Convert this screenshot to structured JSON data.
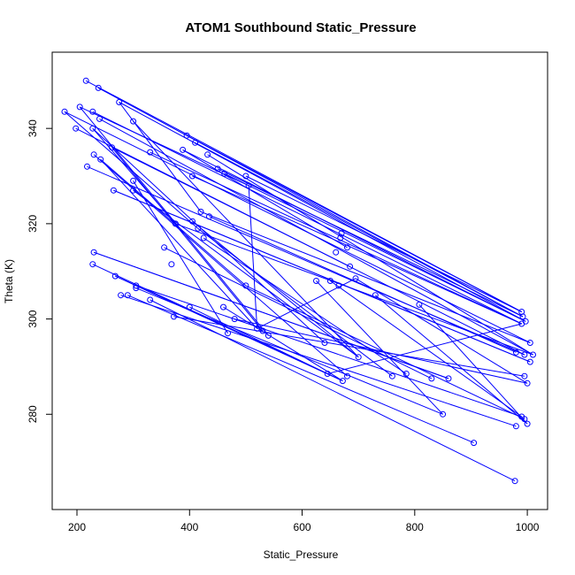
{
  "chart_data": {
    "type": "line",
    "title": "ATOM1 Southbound Static_Pressure",
    "xlabel": "Static_Pressure",
    "ylabel": "Theta (K)",
    "xlim": [
      156,
      1036
    ],
    "ylim": [
      260,
      356
    ],
    "x_ticks": [
      200,
      400,
      600,
      800,
      1000
    ],
    "y_ticks": [
      280,
      300,
      320,
      340
    ],
    "grid": false,
    "series_color": "#0000ff",
    "marker": "open-circle",
    "points": [
      [
        216,
        350
      ],
      [
        238,
        348.5
      ],
      [
        275,
        345.5
      ],
      [
        205,
        344.5
      ],
      [
        228,
        343.5
      ],
      [
        178,
        343.5
      ],
      [
        240,
        342
      ],
      [
        300,
        341.5
      ],
      [
        198,
        340
      ],
      [
        228,
        340
      ],
      [
        395,
        338.5
      ],
      [
        410,
        337
      ],
      [
        262,
        336
      ],
      [
        388,
        335.5
      ],
      [
        330,
        335
      ],
      [
        230,
        334.5
      ],
      [
        242,
        333.5
      ],
      [
        432,
        334.5
      ],
      [
        218,
        332
      ],
      [
        450,
        331.5
      ],
      [
        462,
        330.5
      ],
      [
        405,
        330
      ],
      [
        500,
        330
      ],
      [
        300,
        329
      ],
      [
        505,
        328
      ],
      [
        300,
        327
      ],
      [
        265,
        327
      ],
      [
        420,
        322.5
      ],
      [
        435,
        321.5
      ],
      [
        375,
        320
      ],
      [
        405,
        320.5
      ],
      [
        415,
        319
      ],
      [
        670,
        318
      ],
      [
        668,
        317
      ],
      [
        680,
        315
      ],
      [
        425,
        317
      ],
      [
        355,
        315
      ],
      [
        660,
        314
      ],
      [
        230,
        314
      ],
      [
        368,
        311.5
      ],
      [
        228,
        311.5
      ],
      [
        685,
        311
      ],
      [
        268,
        309
      ],
      [
        695,
        308.5
      ],
      [
        625,
        308
      ],
      [
        650,
        308
      ],
      [
        665,
        307
      ],
      [
        500,
        307
      ],
      [
        730,
        305
      ],
      [
        278,
        305
      ],
      [
        290,
        305
      ],
      [
        330,
        304
      ],
      [
        808,
        303
      ],
      [
        305,
        307
      ],
      [
        400,
        302.5
      ],
      [
        460,
        302.5
      ],
      [
        305,
        306.5
      ],
      [
        372,
        300.5
      ],
      [
        480,
        300
      ],
      [
        990,
        301.5
      ],
      [
        992,
        300.5
      ],
      [
        997,
        299.5
      ],
      [
        990,
        299
      ],
      [
        520,
        298
      ],
      [
        530,
        297.5
      ],
      [
        468,
        297
      ],
      [
        540,
        296.5
      ],
      [
        1005,
        295
      ],
      [
        640,
        295
      ],
      [
        980,
        293
      ],
      [
        1010,
        292.5
      ],
      [
        700,
        292
      ],
      [
        995,
        292.5
      ],
      [
        1005,
        291
      ],
      [
        680,
        288
      ],
      [
        760,
        288
      ],
      [
        785,
        288.5
      ],
      [
        830,
        287.5
      ],
      [
        860,
        287.5
      ],
      [
        995,
        288
      ],
      [
        645,
        288.5
      ],
      [
        672,
        287
      ],
      [
        1000,
        286.5
      ],
      [
        850,
        280
      ],
      [
        990,
        279.5
      ],
      [
        995,
        279
      ],
      [
        1000,
        278
      ],
      [
        980,
        277.5
      ],
      [
        905,
        274
      ],
      [
        978,
        266
      ]
    ],
    "segment_pairs": [
      [
        0,
        59
      ],
      [
        1,
        60
      ],
      [
        2,
        61
      ],
      [
        4,
        62
      ],
      [
        5,
        67
      ],
      [
        6,
        70
      ],
      [
        7,
        71
      ],
      [
        8,
        72
      ],
      [
        9,
        68
      ],
      [
        10,
        59
      ],
      [
        11,
        60
      ],
      [
        12,
        64
      ],
      [
        13,
        61
      ],
      [
        14,
        62
      ],
      [
        16,
        63
      ],
      [
        17,
        70
      ],
      [
        18,
        72
      ],
      [
        19,
        60
      ],
      [
        20,
        61
      ],
      [
        21,
        62
      ],
      [
        22,
        59
      ],
      [
        23,
        65
      ],
      [
        24,
        63
      ],
      [
        25,
        71
      ],
      [
        26,
        73
      ],
      [
        27,
        67
      ],
      [
        28,
        69
      ],
      [
        29,
        70
      ],
      [
        30,
        71
      ],
      [
        31,
        75
      ],
      [
        35,
        76
      ],
      [
        36,
        77
      ],
      [
        38,
        78
      ],
      [
        40,
        80
      ],
      [
        42,
        81
      ],
      [
        43,
        82
      ],
      [
        44,
        83
      ],
      [
        45,
        84
      ],
      [
        47,
        85
      ],
      [
        48,
        86
      ],
      [
        49,
        87
      ],
      [
        50,
        88
      ],
      [
        51,
        89
      ],
      [
        52,
        86
      ],
      [
        53,
        84
      ],
      [
        54,
        80
      ],
      [
        55,
        81
      ],
      [
        56,
        83
      ],
      [
        57,
        79
      ],
      [
        58,
        82
      ],
      [
        3,
        66
      ],
      [
        15,
        74
      ],
      [
        26,
        73
      ],
      [
        38,
        78
      ],
      [
        42,
        81
      ],
      [
        62,
        80
      ],
      [
        5,
        31
      ],
      [
        9,
        29
      ],
      [
        12,
        41
      ],
      [
        3,
        24
      ],
      [
        13,
        34
      ],
      [
        2,
        27
      ],
      [
        16,
        47
      ],
      [
        43,
        63
      ]
    ]
  }
}
